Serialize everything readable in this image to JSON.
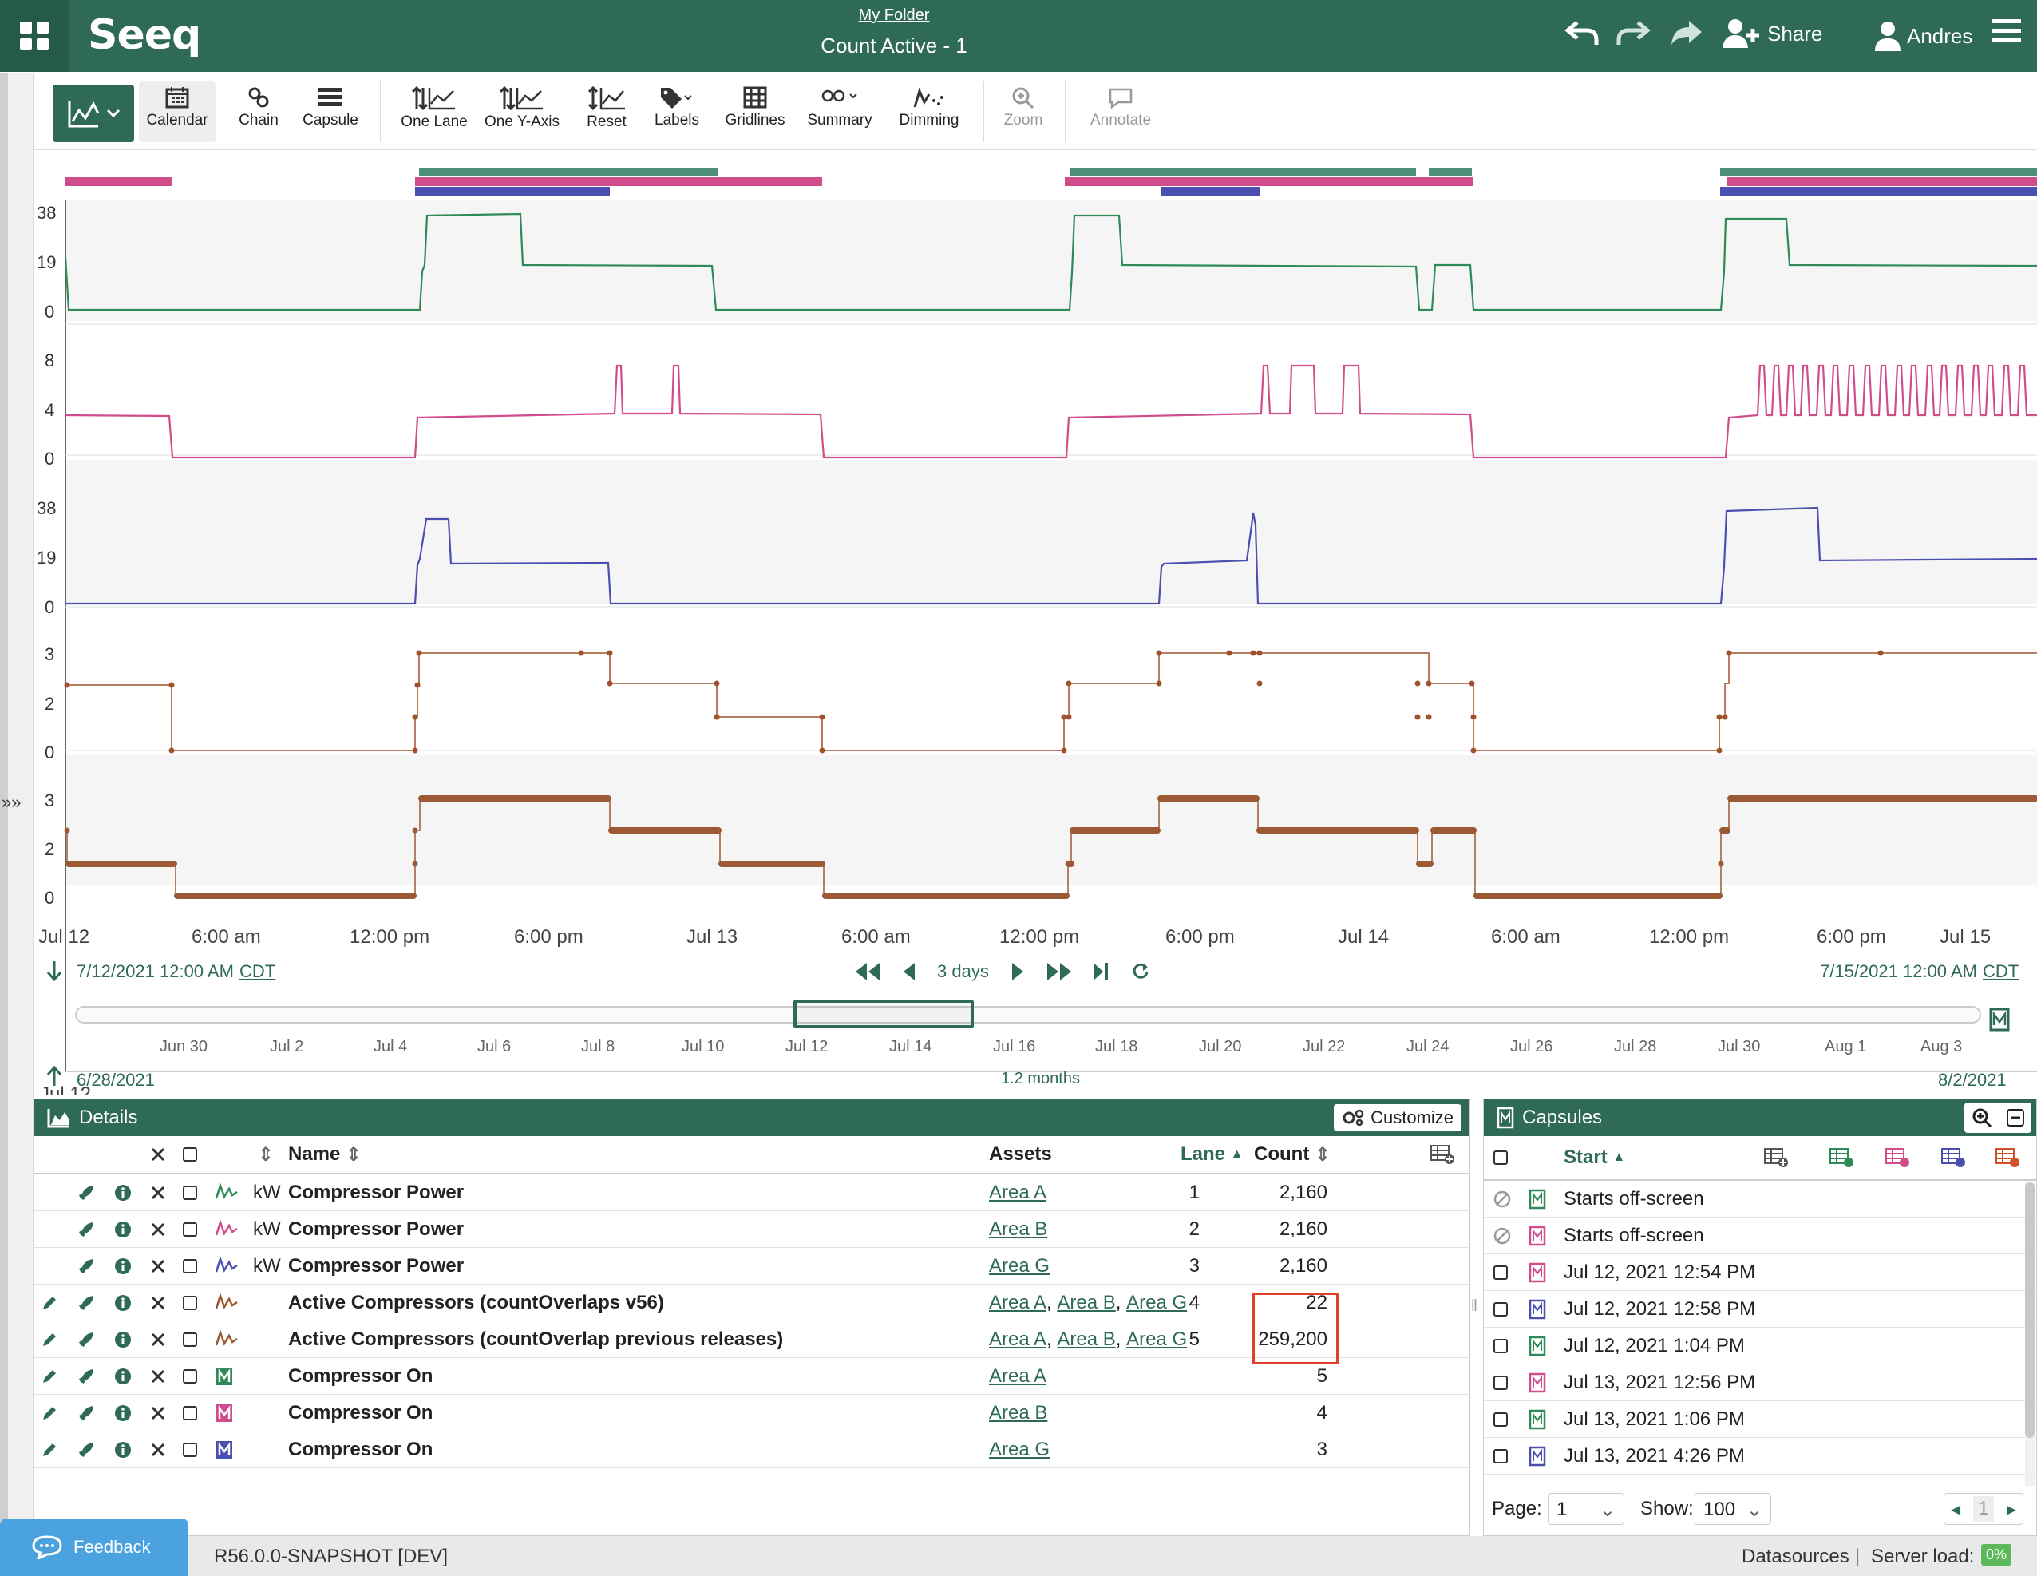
{
  "header": {
    "folder": "My Folder",
    "title": "Count Active - 1",
    "logo": "Seeq",
    "share": "Share",
    "user": "Andres"
  },
  "toolbar": {
    "tools": [
      "Calendar",
      "Chain",
      "Capsule",
      "One Lane",
      "One Y-Axis",
      "Reset",
      "Labels",
      "Gridlines",
      "Summary",
      "Dimming",
      "Zoom",
      "Annotate"
    ]
  },
  "trend": {
    "lanes": [
      {
        "ticks": [
          "38",
          "19",
          "0"
        ],
        "color": "#2e8b57"
      },
      {
        "ticks": [
          "8",
          "4",
          "0"
        ],
        "color": "#d04c8a"
      },
      {
        "ticks": [
          "38",
          "19",
          "0"
        ],
        "color": "#4a4fb0"
      },
      {
        "ticks": [
          "3",
          "2",
          "0"
        ],
        "color": "#a0522d"
      },
      {
        "ticks": [
          "3",
          "2",
          "0"
        ],
        "color": "#9b5a33"
      }
    ],
    "x_labels": [
      "Jul 12",
      "6:00 am",
      "12:00 pm",
      "6:00 pm",
      "Jul 13",
      "6:00 am",
      "12:00 pm",
      "6:00 pm",
      "Jul 14",
      "6:00 am",
      "12:00 pm",
      "6:00 pm",
      "Jul 15"
    ],
    "start": "7/12/2021 12:00 AM",
    "end": "7/15/2021 12:00 AM",
    "tz": "CDT",
    "duration": "3 days",
    "nav_labels": [
      "Jun 30",
      "Jul 2",
      "Jul 4",
      "Jul 6",
      "Jul 8",
      "Jul 10",
      "Jul 12",
      "Jul 14",
      "Jul 16",
      "Jul 18",
      "Jul 20",
      "Jul 22",
      "Jul 24",
      "Jul 26",
      "Jul 28",
      "Jul 30",
      "Aug 1",
      "Aug 3"
    ],
    "nav_start": "6/28/2021",
    "nav_end": "8/2/2021",
    "nav_duration": "1.2 months"
  },
  "details": {
    "title": "Details",
    "customize": "Customize",
    "columns": {
      "name": "Name",
      "assets": "Assets",
      "lane": "Lane",
      "count": "Count"
    },
    "rows": [
      {
        "unit": "kW",
        "name": "Compressor Power",
        "assets": [
          "Area A"
        ],
        "lane": "1",
        "count": "2,160",
        "color": "#2e8b57",
        "capsule": false,
        "pencil": false
      },
      {
        "unit": "kW",
        "name": "Compressor Power",
        "assets": [
          "Area B"
        ],
        "lane": "2",
        "count": "2,160",
        "color": "#d04c8a",
        "capsule": false,
        "pencil": false
      },
      {
        "unit": "kW",
        "name": "Compressor Power",
        "assets": [
          "Area G"
        ],
        "lane": "3",
        "count": "2,160",
        "color": "#4a4fb0",
        "capsule": false,
        "pencil": false
      },
      {
        "unit": "",
        "name": "Active Compressors (countOverlaps v56)",
        "assets": [
          "Area A",
          "Area B",
          "Area G"
        ],
        "lane": "4",
        "count": "22",
        "color": "#a0522d",
        "capsule": false,
        "pencil": true
      },
      {
        "unit": "",
        "name": "Active Compressors (countOverlap previous releases)",
        "assets": [
          "Area A",
          "Area B",
          "Area G"
        ],
        "lane": "5",
        "count": "259,200",
        "color": "#9b5a33",
        "capsule": false,
        "pencil": true
      },
      {
        "unit": "",
        "name": "Compressor On",
        "assets": [
          "Area A"
        ],
        "lane": "",
        "count": "5",
        "color": "#2e8b57",
        "capsule": true,
        "pencil": true
      },
      {
        "unit": "",
        "name": "Compressor On",
        "assets": [
          "Area B"
        ],
        "lane": "",
        "count": "4",
        "color": "#d04c8a",
        "capsule": true,
        "pencil": true
      },
      {
        "unit": "",
        "name": "Compressor On",
        "assets": [
          "Area G"
        ],
        "lane": "",
        "count": "3",
        "color": "#4a4fb0",
        "capsule": true,
        "pencil": true
      }
    ]
  },
  "capsules": {
    "title": "Capsules",
    "start_col": "Start",
    "rows": [
      {
        "start": "Starts off-screen",
        "color": "#2e8b57",
        "off": true
      },
      {
        "start": "Starts off-screen",
        "color": "#d04c8a",
        "off": true
      },
      {
        "start": "Jul 12, 2021 12:54 PM",
        "color": "#d04c8a",
        "off": false
      },
      {
        "start": "Jul 12, 2021 12:58 PM",
        "color": "#4a4fb0",
        "off": false
      },
      {
        "start": "Jul 12, 2021 1:04 PM",
        "color": "#2e8b57",
        "off": false
      },
      {
        "start": "Jul 13, 2021 12:56 PM",
        "color": "#d04c8a",
        "off": false
      },
      {
        "start": "Jul 13, 2021 1:06 PM",
        "color": "#2e8b57",
        "off": false
      },
      {
        "start": "Jul 13, 2021 4:26 PM",
        "color": "#4a4fb0",
        "off": false
      }
    ],
    "page_label": "Page:",
    "page": "1",
    "show_label": "Show:",
    "show": "100",
    "pager": "1"
  },
  "status": {
    "version": "R56.0.0-SNAPSHOT [DEV]",
    "datasources": "Datasources",
    "server_load": "Server load:",
    "load": "0%",
    "feedback": "Feedback"
  }
}
